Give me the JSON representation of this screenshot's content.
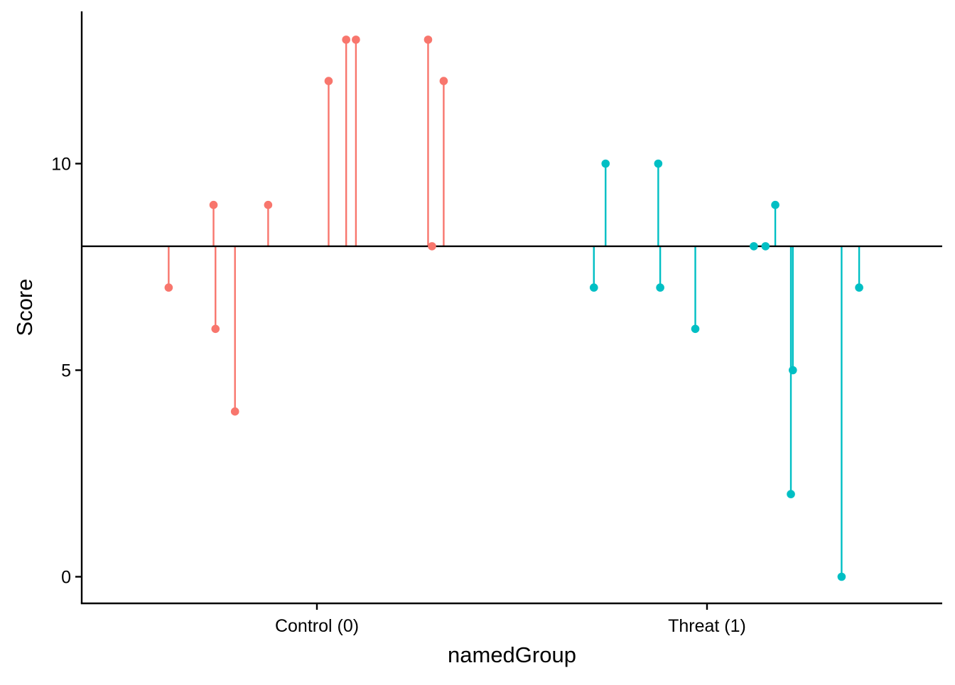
{
  "chart_data": {
    "type": "scatter",
    "subtype": "lollipop-residuals",
    "xlabel": "namedGroup",
    "ylabel": "Score",
    "categories": [
      "Control (0)",
      "Threat (1)"
    ],
    "y_ticks": [
      0,
      5,
      10
    ],
    "ylim": [
      -0.6,
      13.7
    ],
    "reference_line": 8,
    "grid": false,
    "legend": "none",
    "colors": {
      "Control (0)": "#F8766D",
      "Threat (1)": "#00BFC4",
      "axis": "#000000"
    },
    "series": [
      {
        "group": "Control (0)",
        "points": [
          {
            "x": 0.62,
            "y": 7
          },
          {
            "x": 0.735,
            "y": 9
          },
          {
            "x": 0.74,
            "y": 6
          },
          {
            "x": 0.79,
            "y": 4
          },
          {
            "x": 0.875,
            "y": 9
          },
          {
            "x": 1.03,
            "y": 12
          },
          {
            "x": 1.075,
            "y": 13
          },
          {
            "x": 1.1,
            "y": 13
          },
          {
            "x": 1.285,
            "y": 13
          },
          {
            "x": 1.295,
            "y": 8
          },
          {
            "x": 1.325,
            "y": 12
          }
        ]
      },
      {
        "group": "Threat (1)",
        "points": [
          {
            "x": 1.71,
            "y": 7
          },
          {
            "x": 1.74,
            "y": 10
          },
          {
            "x": 1.875,
            "y": 10
          },
          {
            "x": 1.88,
            "y": 7
          },
          {
            "x": 1.97,
            "y": 6
          },
          {
            "x": 2.12,
            "y": 8
          },
          {
            "x": 2.15,
            "y": 8
          },
          {
            "x": 2.175,
            "y": 9
          },
          {
            "x": 2.215,
            "y": 2
          },
          {
            "x": 2.22,
            "y": 5
          },
          {
            "x": 2.345,
            "y": 0
          },
          {
            "x": 2.39,
            "y": 7
          }
        ]
      }
    ]
  }
}
